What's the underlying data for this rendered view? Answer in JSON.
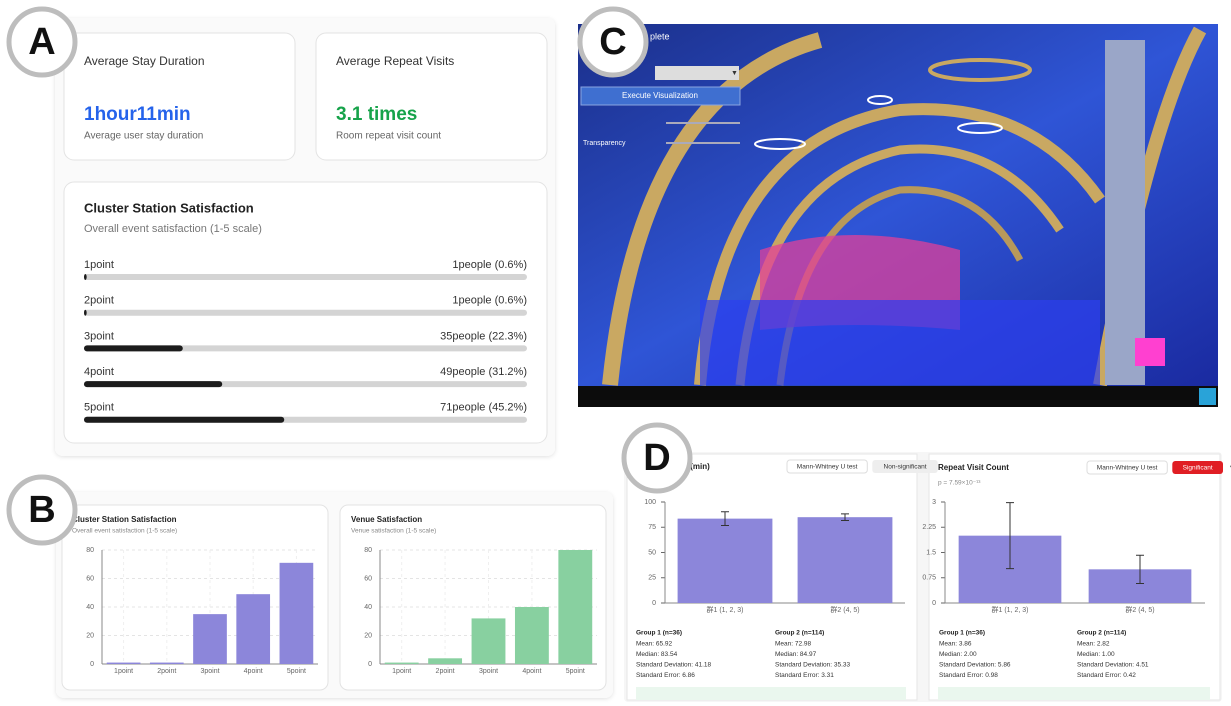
{
  "badges": [
    "A",
    "B",
    "C",
    "D"
  ],
  "panel_a": {
    "cards": [
      {
        "title": "Average Stay Duration",
        "value": "1hour11min",
        "description": "Average user stay duration"
      },
      {
        "title": "Average Repeat Visits",
        "value": "3.1 times",
        "description": "Room repeat visit count"
      }
    ],
    "satisfaction": {
      "title": "Cluster Station Satisfaction",
      "subtitle": "Overall event satisfaction (1-5 scale)",
      "rows": [
        {
          "label": "1point",
          "text": "1people (0.6%)",
          "percent": 0.6
        },
        {
          "label": "2point",
          "text": "1people (0.6%)",
          "percent": 0.6
        },
        {
          "label": "3point",
          "text": "35people (22.3%)",
          "percent": 22.3
        },
        {
          "label": "4point",
          "text": "49people (31.2%)",
          "percent": 31.2
        },
        {
          "label": "5point",
          "text": "71people (45.2%)",
          "percent": 45.2
        }
      ]
    }
  },
  "viewer": {
    "title_fragment": "plete",
    "button": "Execute Visualization",
    "slider_label": "Transparency"
  },
  "chart_data": [
    {
      "type": "bar",
      "title": "Cluster Station Satisfaction",
      "subtitle": "Overall event satisfaction (1-5 scale)",
      "categories": [
        "1point",
        "2point",
        "3point",
        "4point",
        "5point"
      ],
      "values": [
        1,
        1,
        35,
        49,
        71
      ],
      "color": "#8c86da",
      "ylim": [
        0,
        80
      ],
      "yticks": [
        0,
        20,
        40,
        60,
        80
      ],
      "grid": true
    },
    {
      "type": "bar",
      "title": "Venue Satisfaction",
      "subtitle": "Venue satisfaction (1-5 scale)",
      "categories": [
        "1point",
        "2point",
        "3point",
        "4point",
        "5point"
      ],
      "values": [
        1,
        4,
        32,
        40,
        80
      ],
      "color": "#88d0a0",
      "ylim": [
        0,
        80
      ],
      "yticks": [
        0,
        20,
        40,
        60,
        80
      ],
      "grid": true
    },
    {
      "type": "bar",
      "title": "Stay Duration (min)",
      "tags": [
        "Mann-Whitney U test",
        "Non-significant"
      ],
      "categories": [
        "群1 (1, 2, 3)",
        "群2 (4, 5)"
      ],
      "values": [
        83.54,
        84.97
      ],
      "errors": [
        6.86,
        3.31
      ],
      "color": "#8c86da",
      "ylim": [
        0,
        100
      ],
      "yticks": [
        0,
        25,
        50,
        75,
        100
      ],
      "grid": false,
      "stats": [
        {
          "title": "Group 1 (n=36)",
          "lines": [
            "Mean: 65.92",
            "Median: 83.54",
            "Standard Deviation: 41.18",
            "Standard Error: 6.86"
          ]
        },
        {
          "title": "Group 2 (n=114)",
          "lines": [
            "Mean: 72.98",
            "Median: 84.97",
            "Standard Deviation: 35.33",
            "Standard Error: 3.31"
          ]
        }
      ]
    },
    {
      "type": "bar",
      "title": "Repeat Visit Count",
      "subtitle": "p = 7.59×10⁻¹³",
      "tags": [
        "Mann-Whitney U test",
        "Significant"
      ],
      "menu": "•••",
      "categories": [
        "群1 (1, 2, 3)",
        "群2 (4, 5)"
      ],
      "values": [
        2,
        1
      ],
      "errors": [
        0.98,
        0.42
      ],
      "color": "#8c86da",
      "ylim": [
        0,
        3
      ],
      "yticks": [
        0,
        0.75,
        1.5,
        2.25,
        3
      ],
      "grid": false,
      "stats": [
        {
          "title": "Group 1 (n=36)",
          "lines": [
            "Mean: 3.86",
            "Median: 2.00",
            "Standard Deviation: 5.86",
            "Standard Error: 0.98"
          ]
        },
        {
          "title": "Group 2 (n=114)",
          "lines": [
            "Mean: 2.82",
            "Median: 1.00",
            "Standard Deviation: 4.51",
            "Standard Error: 0.42"
          ]
        }
      ]
    }
  ]
}
